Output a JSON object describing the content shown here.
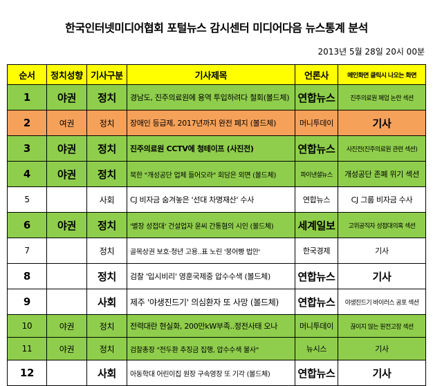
{
  "title": "한국인터넷미디어협회 포털뉴스 감시센터 미디어다음 뉴스통계 분석",
  "date": "2013년 5월 28일 20시 00분",
  "headers": {
    "rank": "순서",
    "politics": "정치성향",
    "category": "기사구분",
    "article": "기사제목",
    "press": "언론사",
    "opened": "메인화면 클릭시 나오는 화면"
  },
  "rows": [
    {
      "rank": "1",
      "politics": "야권",
      "category": "정치",
      "article": "경남도, 진주의료원에 용역 투입하려다 철회(볼드체)",
      "press": "연합뉴스",
      "opened": "진주의료원 폐업 논란 섹션"
    },
    {
      "rank": "2",
      "politics": "여권",
      "category": "정치",
      "article": "장애인 등급제, 2017년까지 완전 폐지 (볼드체)",
      "press": "머니투데이",
      "opened": "기사"
    },
    {
      "rank": "3",
      "politics": "야권",
      "category": "정치",
      "article": "진주의료원 CCTV에 청테이프 (사진전)",
      "press": "연합뉴스",
      "opened": "사진전(진주의료원 관련 섹션)"
    },
    {
      "rank": "4",
      "politics": "야권",
      "category": "정치",
      "article": "북한 \"개성공단 업체 들어오라\" 회담은 외면 (볼드체)",
      "press": "파이낸셜뉴스",
      "opened": "개성공단 존폐 위기 섹션"
    },
    {
      "rank": "5",
      "politics": "",
      "category": "사회",
      "article": "CJ 비자금 숨겨놓은 '선대 차명재산' 수사",
      "press": "연합뉴스",
      "opened": "CJ 그룹 비자금 수사"
    },
    {
      "rank": "6",
      "politics": "야권",
      "category": "정치",
      "article": "'별장 성접대' 건설업자 윤씨 간통혐의 시인 (볼드체)",
      "press": "세계일보",
      "opened": "고위공직자 성접대의혹 섹션"
    },
    {
      "rank": "7",
      "politics": "",
      "category": "정치",
      "article": "골목상권 보호·청년 고용..표 노린 '붕어빵 법안'",
      "press": "한국경제",
      "opened": "기사"
    },
    {
      "rank": "8",
      "politics": "",
      "category": "정치",
      "article": "검찰 '입시비리' 영훈국제중 압수수색 (볼드체)",
      "press": "연합뉴스",
      "opened": "기사"
    },
    {
      "rank": "9",
      "politics": "",
      "category": "사회",
      "article": "제주 '야생진드기' 의심환자 또 사망 (볼드체)",
      "press": "연합뉴스",
      "opened": "야생진드기 바이러스 공포 섹션"
    },
    {
      "rank": "10",
      "politics": "야권",
      "category": "정치",
      "article": "전력대란 현실화, 200만kW부족..정전사태 오나",
      "press": "머니투데이",
      "opened": "끊이지 않는 원전고장 섹션"
    },
    {
      "rank": "11",
      "politics": "야권",
      "category": "정치",
      "article": "검찰총장 \"전두환 추징금 집행, 압수수색 불사\"",
      "press": "뉴시스",
      "opened": "기사"
    },
    {
      "rank": "12",
      "politics": "",
      "category": "사회",
      "article": "아동학대 어린이집 원장 구속영장 또 기각 (볼드체)",
      "press": "연합뉴스",
      "opened": "기사"
    }
  ],
  "colors": {
    "header": "#ffff00",
    "left_leaning": "#8fce4c",
    "right_leaning": "#f6a15a",
    "neutral": "#ffffff"
  }
}
